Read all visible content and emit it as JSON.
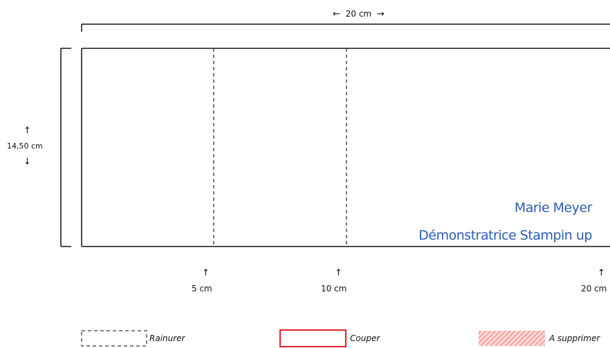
{
  "top_dimension": {
    "left_arrow": "←",
    "label": "20 cm",
    "right_arrow": "→"
  },
  "side_dimension": {
    "up_arrow": "↑",
    "label": "14,50 cm",
    "down_arrow": "↓"
  },
  "score_marks": [
    {
      "arrow": "↑",
      "label": "5 cm"
    },
    {
      "arrow": "↑",
      "label": "10 cm"
    },
    {
      "arrow": "↑",
      "label": "20 cm"
    }
  ],
  "signature": {
    "name": "Marie Meyer",
    "title": "Démonstratrice Stampin up"
  },
  "legend": {
    "score": "Rainurer",
    "cut": "Couper",
    "remove": "A supprimer"
  },
  "colors": {
    "cut_border": "#e0202a",
    "remove_hatch": "#f08a8a",
    "signature": "#2a5db0"
  }
}
